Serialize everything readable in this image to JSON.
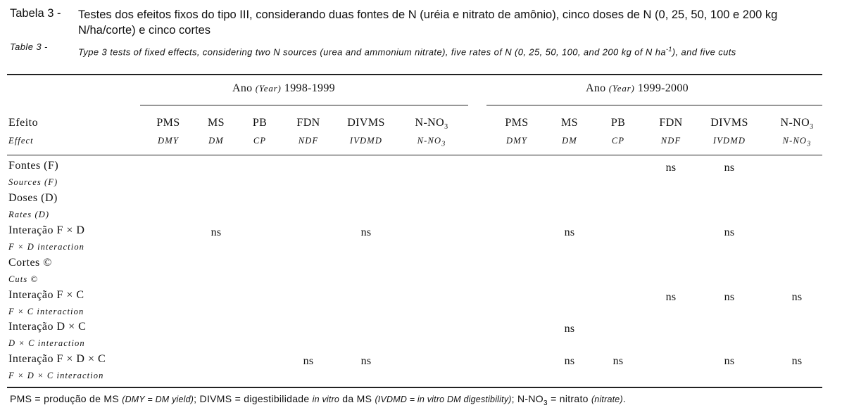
{
  "title": {
    "label_pt": "Tabela 3 -",
    "text_pt": "Testes dos efeitos fixos do tipo III, considerando duas fontes de N (uréia e nitrato de amônio), cinco doses de N (0, 25, 50, 100 e 200 kg N/ha/corte) e cinco cortes",
    "label_en": "Table 3 -",
    "text_en_main": "Type 3 tests of fixed effects, considering two N sources (urea and ammonium nitrate), five rates of N (0, 25, 50, 100, and 200 kg of N ha",
    "text_en_sup": "-1",
    "text_en_end": "), and five cuts"
  },
  "years": [
    {
      "pt": "Ano",
      "en": "(Year)",
      "value": "1998-1999"
    },
    {
      "pt": "Ano",
      "en": "(Year)",
      "value": "1999-2000"
    }
  ],
  "effect_header": {
    "pt": "Efeito",
    "en": "Effect"
  },
  "columns": [
    {
      "pt": "PMS",
      "en": "DMY"
    },
    {
      "pt": "MS",
      "en": "DM"
    },
    {
      "pt": "PB",
      "en": "CP"
    },
    {
      "pt": "FDN",
      "en": "NDF"
    },
    {
      "pt": "DIVMS",
      "en": "IVDMD"
    },
    {
      "pt": "N-NO",
      "en": "N-NO",
      "sub": "3"
    },
    {
      "pt": "PMS",
      "en": "DMY"
    },
    {
      "pt": "MS",
      "en": "DM"
    },
    {
      "pt": "PB",
      "en": "CP"
    },
    {
      "pt": "FDN",
      "en": "NDF"
    },
    {
      "pt": "DIVMS",
      "en": "IVDMD"
    },
    {
      "pt": "N-NO",
      "en": "N-NO",
      "sub": "3"
    }
  ],
  "rows": [
    {
      "pt": "Fontes (F)",
      "en": "Sources (F)",
      "cells": [
        "",
        "",
        "",
        "",
        "",
        "",
        "",
        "",
        "",
        "ns",
        "ns",
        ""
      ]
    },
    {
      "pt": "Doses (D)",
      "en": "Rates (D)",
      "cells": [
        "",
        "",
        "",
        "",
        "",
        "",
        "",
        "",
        "",
        "",
        "",
        ""
      ]
    },
    {
      "pt": "Interação F × D",
      "en": "F × D interaction",
      "cells": [
        "",
        "ns",
        "",
        "",
        "ns",
        "",
        "",
        "ns",
        "",
        "",
        "ns",
        ""
      ]
    },
    {
      "pt": "Cortes ©",
      "en": "Cuts ©",
      "cells": [
        "",
        "",
        "",
        "",
        "",
        "",
        "",
        "",
        "",
        "",
        "",
        ""
      ]
    },
    {
      "pt": "Interação F × C",
      "en": "F × C interaction",
      "cells": [
        "",
        "",
        "",
        "",
        "",
        "",
        "",
        "",
        "",
        "ns",
        "ns",
        "ns"
      ]
    },
    {
      "pt": "Interação D × C",
      "en": "D × C interaction",
      "cells": [
        "",
        "",
        "",
        "",
        "",
        "",
        "",
        "ns",
        "",
        "",
        "",
        ""
      ]
    },
    {
      "pt": "Interação F × D × C",
      "en": "F × D × C interaction",
      "cells": [
        "",
        "",
        "",
        "ns",
        "ns",
        "",
        "",
        "ns",
        "ns",
        "",
        "ns",
        "ns"
      ]
    }
  ],
  "footnote": {
    "p1": "PMS = produção de MS ",
    "p1_it": "(DMY = DM yield)",
    "p2": "; DIVMS = digestibilidade ",
    "p2_it": "in vitro",
    "p3": " da MS ",
    "p3_it": "(IVDMD = in vitro DM digestibility)",
    "p4": "; N-NO",
    "p4_sub": "3",
    "p5": " = nitrato ",
    "p5_it": "(nitrate)",
    "p6": "."
  }
}
